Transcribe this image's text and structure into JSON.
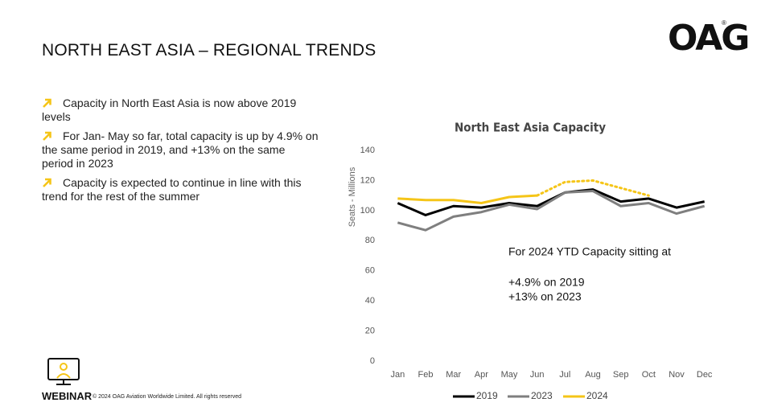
{
  "header": {
    "title": "NORTH EAST ASIA – REGIONAL TRENDS",
    "logo": "OAG",
    "logo_symbol": "®"
  },
  "bullets": [
    "Capacity in North East Asia is now above 2019 levels",
    "For Jan- May so far, total capacity is up by 4.9% on the same period in 2019, and +13% on the same period in 2023",
    "Capacity is expected to continue in line with this trend for the rest of the summer"
  ],
  "chart_data": {
    "type": "line",
    "title": "North East Asia Capacity",
    "y_label": "Seats - Millions",
    "categories": [
      "Jan",
      "Feb",
      "Mar",
      "Apr",
      "May",
      "Jun",
      "Jul",
      "Aug",
      "Sep",
      "Oct",
      "Nov",
      "Dec"
    ],
    "series": [
      {
        "name": "2019",
        "color": "#000000",
        "values": [
          105,
          97,
          103,
          102,
          105,
          103,
          112,
          114,
          106,
          108,
          102,
          106
        ]
      },
      {
        "name": "2023",
        "color": "#7f7f7f",
        "values": [
          92,
          87,
          96,
          99,
          104,
          101,
          112,
          113,
          103,
          105,
          98,
          103
        ]
      },
      {
        "name": "2024",
        "color": "#f5c518",
        "values": [
          108,
          107,
          107,
          105,
          109,
          110,
          119,
          120,
          115,
          110,
          null,
          null
        ],
        "dashed_from": 5
      }
    ],
    "ylim": [
      0,
      140
    ],
    "yticks": [
      0,
      20,
      40,
      60,
      80,
      100,
      120,
      140
    ],
    "grid": false,
    "legend": "bottom",
    "annotations": [
      "For 2024 YTD Capacity sitting at",
      "+4.9% on 2019",
      "+13% on 2023"
    ]
  },
  "footer": {
    "brand": "WEBINAR",
    "copyright": "© 2024 OAG Aviation Worldwide Limited. All rights reserved"
  }
}
